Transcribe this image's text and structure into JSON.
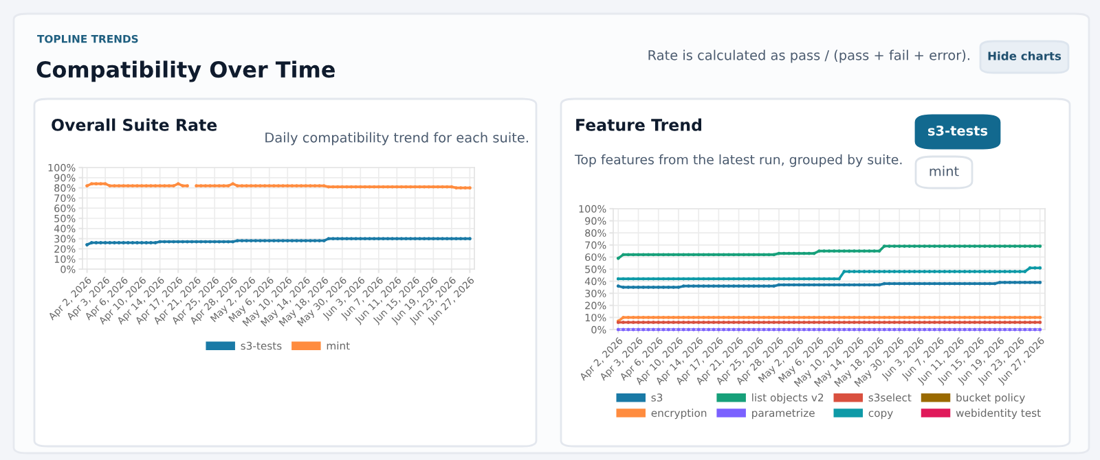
{
  "chart_data": [
    {
      "type": "line",
      "title": "Overall Suite Rate",
      "subtitle": "Daily compatibility trend for each suite.",
      "annotations": [
        "TOPLINE TRENDS",
        "Compatibility Over Time",
        "Rate is calculated as pass / (pass + fail + error).",
        "Hide charts"
      ],
      "categories": [
        "Apr 2, 2026",
        null,
        null,
        null,
        "Apr 3, 2026",
        null,
        null,
        null,
        "Apr 6, 2026",
        null,
        null,
        null,
        "Apr 10, 2026",
        null,
        null,
        null,
        "Apr 14, 2026",
        null,
        null,
        null,
        "Apr 17, 2026",
        null,
        null,
        null,
        "Apr 21, 2026",
        null,
        null,
        null,
        "Apr 25, 2026",
        null,
        null,
        null,
        "Apr 28, 2026",
        null,
        null,
        null,
        "May 2, 2026",
        null,
        null,
        null,
        "May 6, 2026",
        null,
        null,
        null,
        "May 10, 2026",
        null,
        null,
        null,
        "May 14, 2026",
        null,
        null,
        null,
        "May 18, 2026",
        null,
        null,
        null,
        "May 30, 2026",
        null,
        null,
        null,
        "Jun 3, 2026",
        null,
        null,
        null,
        "Jun 7, 2026",
        null,
        null,
        null,
        "Jun 11, 2026",
        null,
        null,
        null,
        "Jun 15, 2026",
        null,
        null,
        null,
        "Jun 19, 2026",
        null,
        null,
        null,
        "Jun 23, 2026",
        null,
        null,
        null,
        "Jun 27, 2026"
      ],
      "series": [
        {
          "name": "s3-tests",
          "color": "#1a7aa6",
          "values": [
            24,
            26,
            26,
            26,
            26,
            26,
            26,
            26,
            26,
            26,
            26,
            26,
            26,
            26,
            26,
            26,
            27,
            27,
            27,
            27,
            27,
            27,
            27,
            27,
            27,
            27,
            27,
            27,
            27,
            27,
            27,
            27,
            27,
            28,
            28,
            28,
            28,
            28,
            28,
            28,
            28,
            28,
            28,
            28,
            28,
            28,
            28,
            28,
            28,
            28,
            28,
            28,
            28,
            30,
            30,
            30,
            30,
            30,
            30,
            30,
            30,
            30,
            30,
            30,
            30,
            30,
            30,
            30,
            30,
            30,
            30,
            30,
            30,
            30,
            30,
            30,
            30,
            30,
            30,
            30,
            30,
            30,
            30,
            30,
            30
          ]
        },
        {
          "name": "mint",
          "color": "#ff8c3f",
          "values": [
            82,
            84,
            84,
            84,
            84,
            82,
            82,
            82,
            82,
            82,
            82,
            82,
            82,
            82,
            82,
            82,
            82,
            82,
            82,
            82,
            84,
            82,
            82,
            null,
            82,
            82,
            82,
            82,
            82,
            82,
            82,
            82,
            84,
            82,
            82,
            82,
            82,
            82,
            82,
            82,
            82,
            82,
            82,
            82,
            82,
            82,
            82,
            82,
            82,
            82,
            82,
            82,
            82,
            81,
            81,
            81,
            81,
            81,
            81,
            81,
            81,
            81,
            81,
            81,
            81,
            81,
            81,
            81,
            81,
            81,
            81,
            81,
            81,
            81,
            81,
            81,
            81,
            81,
            81,
            81,
            81,
            80,
            80,
            80,
            80
          ]
        }
      ],
      "ylim": [
        0,
        100
      ],
      "yticks": [
        {
          "value": 0,
          "label": "0%"
        },
        {
          "value": 10,
          "label": "10%"
        },
        {
          "value": 20,
          "label": "20%"
        },
        {
          "value": 30,
          "label": "30%"
        },
        {
          "value": 40,
          "label": "40%"
        },
        {
          "value": 50,
          "label": "50%"
        },
        {
          "value": 60,
          "label": "60%"
        },
        {
          "value": 70,
          "label": "70%"
        },
        {
          "value": 80,
          "label": "80%"
        },
        {
          "value": 90,
          "label": "90%"
        },
        {
          "value": 100,
          "label": "100%"
        }
      ],
      "grid": true,
      "legend": "bottom",
      "marker": "circle",
      "line_style": "solid"
    },
    {
      "type": "line",
      "title": "Feature Trend",
      "subtitle": "Top features from the latest run, grouped by suite.",
      "annotations": [
        "s3-tests",
        "mint"
      ],
      "categories": [
        "Apr 2, 2026",
        null,
        null,
        null,
        "Apr 3, 2026",
        null,
        null,
        null,
        "Apr 6, 2026",
        null,
        null,
        null,
        "Apr 10, 2026",
        null,
        null,
        null,
        "Apr 14, 2026",
        null,
        null,
        null,
        "Apr 17, 2026",
        null,
        null,
        null,
        "Apr 21, 2026",
        null,
        null,
        null,
        "Apr 25, 2026",
        null,
        null,
        null,
        "Apr 28, 2026",
        null,
        null,
        null,
        "May 2, 2026",
        null,
        null,
        null,
        "May 6, 2026",
        null,
        null,
        null,
        "May 10, 2026",
        null,
        null,
        null,
        "May 14, 2026",
        null,
        null,
        null,
        "May 18, 2026",
        null,
        null,
        null,
        "May 30, 2026",
        null,
        null,
        null,
        "Jun 3, 2026",
        null,
        null,
        null,
        "Jun 7, 2026",
        null,
        null,
        null,
        "Jun 11, 2026",
        null,
        null,
        null,
        "Jun 15, 2026",
        null,
        null,
        null,
        "Jun 19, 2026",
        null,
        null,
        null,
        "Jun 23, 2026",
        null,
        null,
        null,
        "Jun 27, 2026"
      ],
      "series": [
        {
          "name": "s3",
          "color": "#1a7aa6",
          "values": [
            36,
            35,
            35,
            35,
            35,
            35,
            35,
            35,
            35,
            35,
            35,
            35,
            35,
            36,
            36,
            36,
            36,
            36,
            36,
            36,
            36,
            36,
            36,
            36,
            36,
            36,
            36,
            36,
            36,
            36,
            36,
            36,
            37,
            37,
            37,
            37,
            37,
            37,
            37,
            37,
            37,
            37,
            37,
            37,
            37,
            37,
            37,
            37,
            37,
            37,
            37,
            37,
            37,
            38,
            38,
            38,
            38,
            38,
            38,
            38,
            38,
            38,
            38,
            38,
            38,
            38,
            38,
            38,
            38,
            38,
            38,
            38,
            38,
            38,
            38,
            38,
            39,
            39,
            39,
            39,
            39,
            39,
            39,
            39,
            39
          ]
        },
        {
          "name": "encryption",
          "color": "#ff8c3f",
          "values": [
            7,
            10,
            10,
            10,
            10,
            10,
            10,
            10,
            10,
            10,
            10,
            10,
            10,
            10,
            10,
            10,
            10,
            10,
            10,
            10,
            10,
            10,
            10,
            10,
            10,
            10,
            10,
            10,
            10,
            10,
            10,
            10,
            10,
            10,
            10,
            10,
            10,
            10,
            10,
            10,
            10,
            10,
            10,
            10,
            10,
            10,
            10,
            10,
            10,
            10,
            10,
            10,
            10,
            10,
            10,
            10,
            10,
            10,
            10,
            10,
            10,
            10,
            10,
            10,
            10,
            10,
            10,
            10,
            10,
            10,
            10,
            10,
            10,
            10,
            10,
            10,
            10,
            10,
            10,
            10,
            10,
            10,
            10,
            10,
            10
          ]
        },
        {
          "name": "list objects v2",
          "color": "#17a07a",
          "values": [
            59,
            62,
            62,
            62,
            62,
            62,
            62,
            62,
            62,
            62,
            62,
            62,
            62,
            62,
            62,
            62,
            62,
            62,
            62,
            62,
            62,
            62,
            62,
            62,
            62,
            62,
            62,
            62,
            62,
            62,
            62,
            62,
            63,
            63,
            63,
            63,
            63,
            63,
            63,
            63,
            65,
            65,
            65,
            65,
            65,
            65,
            65,
            65,
            65,
            65,
            65,
            65,
            65,
            69,
            69,
            69,
            69,
            69,
            69,
            69,
            69,
            69,
            69,
            69,
            69,
            69,
            69,
            69,
            69,
            69,
            69,
            69,
            69,
            69,
            69,
            69,
            69,
            69,
            69,
            69,
            69,
            69,
            69,
            69,
            69
          ]
        },
        {
          "name": "parametrize",
          "color": "#7b61ff",
          "values": [
            0,
            0,
            0,
            0,
            0,
            0,
            0,
            0,
            0,
            0,
            0,
            0,
            0,
            0,
            0,
            0,
            0,
            0,
            0,
            0,
            0,
            0,
            0,
            0,
            0,
            0,
            0,
            0,
            0,
            0,
            0,
            0,
            0,
            0,
            0,
            0,
            0,
            0,
            0,
            0,
            0,
            0,
            0,
            0,
            0,
            0,
            0,
            0,
            0,
            0,
            0,
            0,
            0,
            0,
            0,
            0,
            0,
            0,
            0,
            0,
            0,
            0,
            0,
            0,
            0,
            0,
            0,
            0,
            0,
            0,
            0,
            0,
            0,
            0,
            0,
            0,
            0,
            0,
            0,
            0,
            0,
            0,
            0,
            0,
            0
          ]
        },
        {
          "name": "s3select",
          "color": "#d9503f",
          "values": [
            6,
            6,
            6,
            6,
            6,
            6,
            6,
            6,
            6,
            6,
            6,
            6,
            6,
            6,
            6,
            6,
            6,
            6,
            6,
            6,
            6,
            6,
            6,
            6,
            6,
            6,
            6,
            6,
            6,
            6,
            6,
            6,
            6,
            6,
            6,
            6,
            6,
            6,
            6,
            6,
            6,
            6,
            6,
            6,
            6,
            6,
            6,
            6,
            6,
            6,
            6,
            6,
            6,
            6,
            6,
            6,
            6,
            6,
            6,
            6,
            6,
            6,
            6,
            6,
            6,
            6,
            6,
            6,
            6,
            6,
            6,
            6,
            6,
            6,
            6,
            6,
            6,
            6,
            6,
            6,
            6,
            6,
            6,
            6,
            6
          ]
        },
        {
          "name": "copy",
          "color": "#0e9aa7",
          "values": [
            42,
            42,
            42,
            42,
            42,
            42,
            42,
            42,
            42,
            42,
            42,
            42,
            42,
            42,
            42,
            42,
            42,
            42,
            42,
            42,
            42,
            42,
            42,
            42,
            42,
            42,
            42,
            42,
            42,
            42,
            42,
            42,
            42,
            42,
            42,
            42,
            42,
            42,
            42,
            42,
            42,
            42,
            42,
            42,
            42,
            48,
            48,
            48,
            48,
            48,
            48,
            48,
            48,
            48,
            48,
            48,
            48,
            48,
            48,
            48,
            48,
            48,
            48,
            48,
            48,
            48,
            48,
            48,
            48,
            48,
            48,
            48,
            48,
            48,
            48,
            48,
            48,
            48,
            48,
            48,
            48,
            48,
            51,
            51,
            51
          ]
        },
        {
          "name": "bucket policy",
          "color": "#9a6a00",
          "values": [
            null,
            null,
            null,
            null,
            null,
            null,
            null,
            null,
            null,
            null,
            null,
            null,
            null,
            null,
            null,
            null,
            null,
            null,
            null,
            null,
            null,
            null,
            null,
            null,
            null,
            null,
            null,
            null,
            null,
            null,
            null,
            null,
            null,
            null,
            null,
            null,
            null,
            null,
            null,
            null,
            null,
            null,
            null,
            null,
            null,
            null,
            null,
            null,
            null,
            null,
            null,
            null,
            null,
            null,
            null,
            null,
            null,
            null,
            null,
            null,
            null,
            null,
            null,
            null,
            null,
            null,
            null,
            null,
            null,
            null,
            null,
            null,
            null,
            null,
            null,
            null,
            null,
            null,
            null,
            null,
            null,
            null,
            null,
            null,
            null
          ]
        },
        {
          "name": "webidentity test",
          "color": "#e0195a",
          "values": [
            null,
            null,
            null,
            null,
            null,
            null,
            null,
            null,
            null,
            null,
            null,
            null,
            null,
            null,
            null,
            null,
            null,
            null,
            null,
            null,
            null,
            null,
            null,
            null,
            null,
            null,
            null,
            null,
            null,
            null,
            null,
            null,
            null,
            null,
            null,
            null,
            null,
            null,
            null,
            null,
            null,
            null,
            null,
            null,
            null,
            null,
            null,
            null,
            null,
            null,
            null,
            null,
            null,
            null,
            null,
            null,
            null,
            null,
            null,
            null,
            null,
            null,
            null,
            null,
            null,
            null,
            null,
            null,
            null,
            null,
            null,
            null,
            null,
            null,
            null,
            null,
            null,
            null,
            null,
            null,
            null,
            null,
            null,
            null,
            null
          ]
        }
      ],
      "ylim": [
        0,
        100
      ],
      "yticks": [
        {
          "value": 0,
          "label": "0%"
        },
        {
          "value": 10,
          "label": "10%"
        },
        {
          "value": 20,
          "label": "20%"
        },
        {
          "value": 30,
          "label": "30%"
        },
        {
          "value": 40,
          "label": "40%"
        },
        {
          "value": 50,
          "label": "50%"
        },
        {
          "value": 60,
          "label": "60%"
        },
        {
          "value": 70,
          "label": "70%"
        },
        {
          "value": 80,
          "label": "80%"
        },
        {
          "value": 90,
          "label": "90%"
        },
        {
          "value": 100,
          "label": "100%"
        }
      ],
      "grid": true,
      "legend": "bottom",
      "marker": "circle",
      "line_style": "solid"
    }
  ]
}
